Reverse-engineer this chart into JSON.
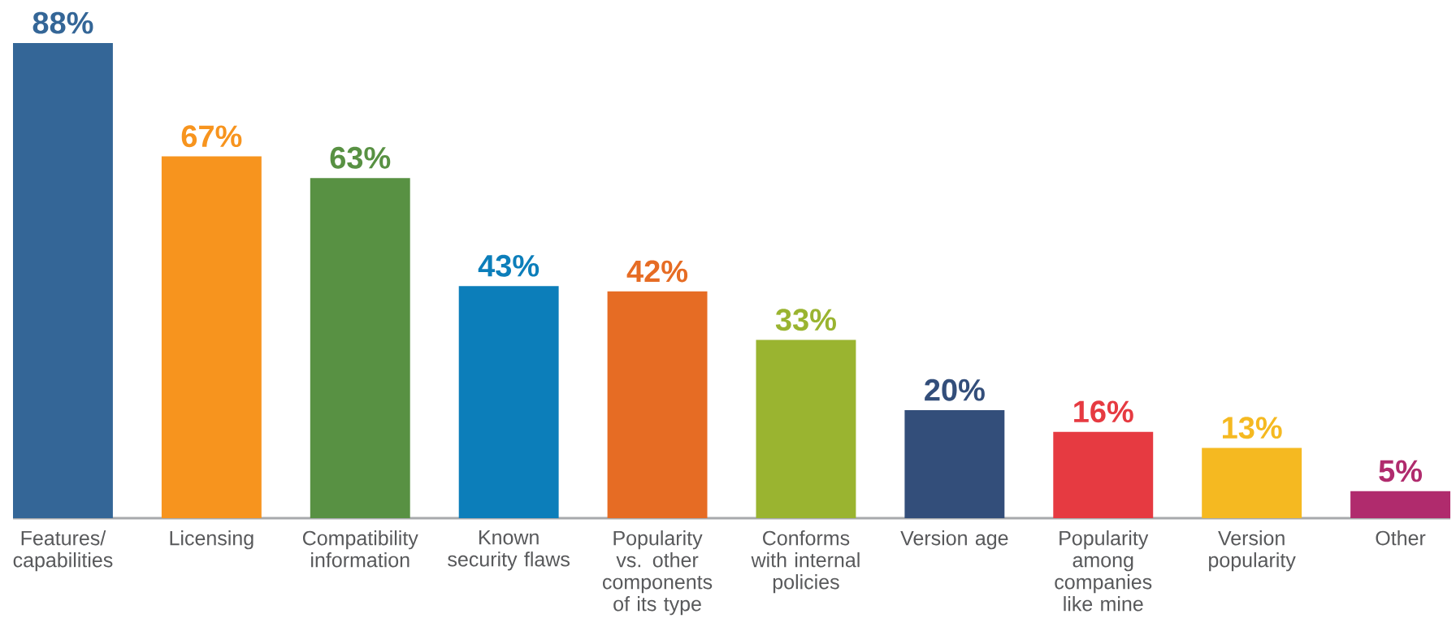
{
  "chart_data": {
    "type": "bar",
    "categories": [
      "Features/ capabilities",
      "Licensing",
      "Compatibility information",
      "Known security flaws",
      "Popularity vs. other components of its type",
      "Conforms with internal policies",
      "Version age",
      "Popularity among companies like mine",
      "Version popularity",
      "Other"
    ],
    "values": [
      88,
      67,
      63,
      43,
      42,
      33,
      20,
      16,
      13,
      5
    ],
    "colors": [
      "#346697",
      "#F7941E",
      "#589143",
      "#0C7EBA",
      "#E66C24",
      "#9AB430",
      "#334E7A",
      "#E63A41",
      "#F5B921",
      "#B02B6D"
    ],
    "value_labels": [
      "88%",
      "67%",
      "63%",
      "43%",
      "42%",
      "33%",
      "20%",
      "16%",
      "13%",
      "5%"
    ]
  }
}
